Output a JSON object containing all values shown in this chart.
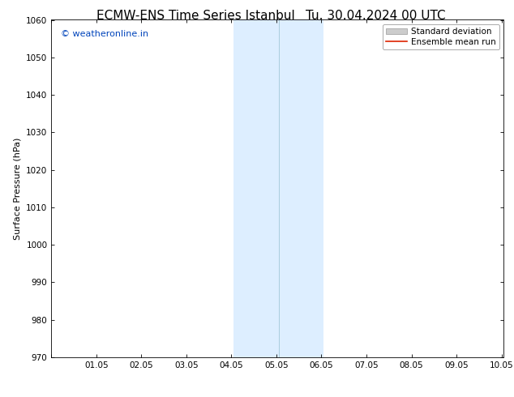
{
  "title_left": "ECMW-ENS Time Series Istanbul",
  "title_right": "Tu. 30.04.2024 00 UTC",
  "ylabel": "Surface Pressure (hPa)",
  "xlabel": "",
  "xlim": [
    0.0,
    10.05
  ],
  "ylim": [
    970,
    1060
  ],
  "yticks": [
    970,
    980,
    990,
    1000,
    1010,
    1020,
    1030,
    1040,
    1050,
    1060
  ],
  "xtick_labels": [
    "",
    "01.05",
    "02.05",
    "03.05",
    "04.05",
    "05.05",
    "06.05",
    "07.05",
    "08.05",
    "09.05",
    "10.05"
  ],
  "xtick_positions": [
    0.0,
    1.0,
    2.0,
    3.0,
    4.0,
    5.0,
    6.0,
    7.0,
    8.0,
    9.0,
    10.0
  ],
  "shaded_region": [
    4.05,
    6.05
  ],
  "shaded_color": "#ddeeff",
  "divider_line_x": 5.05,
  "divider_line_color": "#aaccdd",
  "watermark_text": "© weatheronline.in",
  "watermark_color": "#0044bb",
  "legend_items": [
    {
      "label": "Standard deviation",
      "color": "#cccccc",
      "type": "patch"
    },
    {
      "label": "Ensemble mean run",
      "color": "#dd2200",
      "type": "line"
    }
  ],
  "bg_color": "#ffffff",
  "title_fontsize": 11,
  "axis_fontsize": 8,
  "tick_fontsize": 7.5,
  "watermark_fontsize": 8,
  "legend_fontsize": 7.5
}
